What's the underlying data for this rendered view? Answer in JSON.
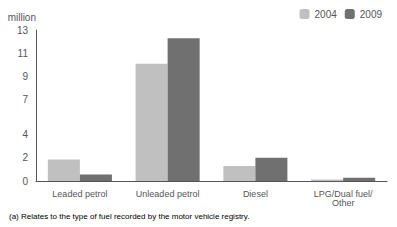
{
  "chart_data": {
    "type": "bar",
    "categories": [
      "Leaded petrol",
      "Unleaded petrol",
      "Diesel",
      "LPG/Dual fuel/Other"
    ],
    "series": [
      {
        "name": "2004",
        "color": "#c0c0c0",
        "values": [
          1.85,
          10.1,
          1.3,
          0.12
        ]
      },
      {
        "name": "2009",
        "color": "#707070",
        "values": [
          0.55,
          12.3,
          2.0,
          0.28
        ]
      }
    ],
    "ylim": [
      0,
      13
    ],
    "yticks": [
      0,
      2,
      4,
      7,
      9,
      11,
      13
    ],
    "ylabel": "million",
    "footnote": "(a) Relates to the type of fuel recorded by the motor vehicle registry.",
    "legend": "upper right",
    "grid": false
  }
}
